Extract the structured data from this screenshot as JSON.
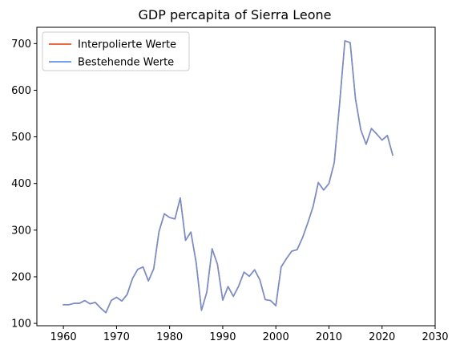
{
  "chart_data": {
    "type": "line",
    "title": "GDP percapita of Sierra Leone",
    "xlabel": "",
    "ylabel": "",
    "xlim": [
      1955,
      2030
    ],
    "ylim": [
      95,
      735
    ],
    "xticks": [
      1960,
      1970,
      1980,
      1990,
      2000,
      2010,
      2020,
      2030
    ],
    "yticks": [
      100,
      200,
      300,
      400,
      500,
      600,
      700
    ],
    "grid": false,
    "legend_position": "top-left",
    "series": [
      {
        "name": "Interpolierte Werte",
        "color": "#e8552a",
        "x": [
          1960,
          1961,
          1962,
          1963,
          1964,
          1965,
          1966,
          1967,
          1968,
          1969,
          1970,
          1971,
          1972,
          1973,
          1974,
          1975,
          1976,
          1977,
          1978,
          1979,
          1980,
          1981,
          1982,
          1983,
          1984,
          1985,
          1986,
          1987,
          1988,
          1989,
          1990,
          1991,
          1992,
          1993,
          1994,
          1995,
          1996,
          1997,
          1998,
          1999,
          2000,
          2001,
          2002,
          2003,
          2004,
          2005,
          2006,
          2007,
          2008,
          2009,
          2010,
          2011,
          2012,
          2013,
          2014,
          2015,
          2016,
          2017,
          2018,
          2019,
          2020,
          2021,
          2022
        ],
        "y": [
          140,
          140,
          143,
          143,
          149,
          142,
          145,
          133,
          123,
          149,
          156,
          148,
          162,
          196,
          216,
          221,
          191,
          217,
          297,
          335,
          327,
          324,
          369,
          278,
          296,
          230,
          128,
          167,
          260,
          227,
          150,
          179,
          158,
          180,
          210,
          201,
          215,
          193,
          151,
          149,
          138,
          221,
          239,
          255,
          258,
          283,
          315,
          350,
          402,
          386,
          400,
          445,
          570,
          706,
          702,
          581,
          515,
          484,
          518,
          506,
          493,
          503,
          461
        ]
      },
      {
        "name": "Bestehende Werte",
        "color": "#6495ed",
        "x": [
          1960,
          1961,
          1962,
          1963,
          1964,
          1965,
          1966,
          1967,
          1968,
          1969,
          1970,
          1971,
          1972,
          1973,
          1974,
          1975,
          1976,
          1977,
          1978,
          1979,
          1980,
          1981,
          1982,
          1983,
          1984,
          1985,
          1986,
          1987,
          1988,
          1989,
          1990,
          1991,
          1992,
          1993,
          1994,
          1995,
          1996,
          1997,
          1998,
          1999,
          2000,
          2001,
          2002,
          2003,
          2004,
          2005,
          2006,
          2007,
          2008,
          2009,
          2010,
          2011,
          2012,
          2013,
          2014,
          2015,
          2016,
          2017,
          2018,
          2019,
          2020,
          2021,
          2022
        ],
        "y": [
          140,
          140,
          143,
          143,
          149,
          142,
          145,
          133,
          123,
          149,
          156,
          148,
          162,
          196,
          216,
          221,
          191,
          217,
          297,
          335,
          327,
          324,
          369,
          278,
          296,
          230,
          128,
          167,
          260,
          227,
          150,
          179,
          158,
          180,
          210,
          201,
          215,
          193,
          151,
          149,
          138,
          221,
          239,
          255,
          258,
          283,
          315,
          350,
          402,
          386,
          400,
          445,
          570,
          706,
          702,
          581,
          515,
          484,
          518,
          506,
          493,
          503,
          461
        ]
      }
    ]
  }
}
